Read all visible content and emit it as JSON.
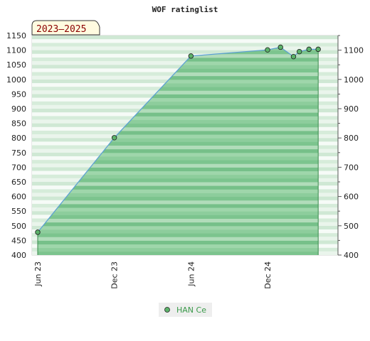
{
  "chart_data": {
    "type": "area",
    "title": "WOF ratinglist",
    "period_label": "2023–2025",
    "xlabel": "",
    "ylabel": "",
    "ylim": [
      400,
      1150
    ],
    "y_ticks_left": [
      400,
      450,
      500,
      550,
      600,
      650,
      700,
      750,
      800,
      850,
      900,
      950,
      1000,
      1050,
      1100,
      1150
    ],
    "y_ticks_right": [
      400,
      500,
      600,
      700,
      800,
      900,
      1000,
      1100
    ],
    "x_ticks": [
      "Jun 23",
      "Dec 23",
      "Jun 24",
      "Dec 24"
    ],
    "x_tick_dates": [
      "2023-06-01",
      "2023-12-01",
      "2024-06-01",
      "2024-12-01"
    ],
    "xlim": [
      "2023-06-01",
      "2025-04-01"
    ],
    "grid": true,
    "legend_position": "bottom-center",
    "series": [
      {
        "name": "HAN Ce",
        "color": "#5a9fd4",
        "fill_color": "#7cc48e",
        "marker_color": "#5cb36a",
        "points": [
          {
            "x": "2023-06-01",
            "y": 478
          },
          {
            "x": "2023-12-01",
            "y": 801
          },
          {
            "x": "2024-06-01",
            "y": 1080
          },
          {
            "x": "2024-12-01",
            "y": 1101
          },
          {
            "x": "2025-01-01",
            "y": 1110
          },
          {
            "x": "2025-02-01",
            "y": 1078
          },
          {
            "x": "2025-02-15",
            "y": 1095
          },
          {
            "x": "2025-03-10",
            "y": 1103
          },
          {
            "x": "2025-04-01",
            "y": 1103
          }
        ]
      }
    ]
  }
}
